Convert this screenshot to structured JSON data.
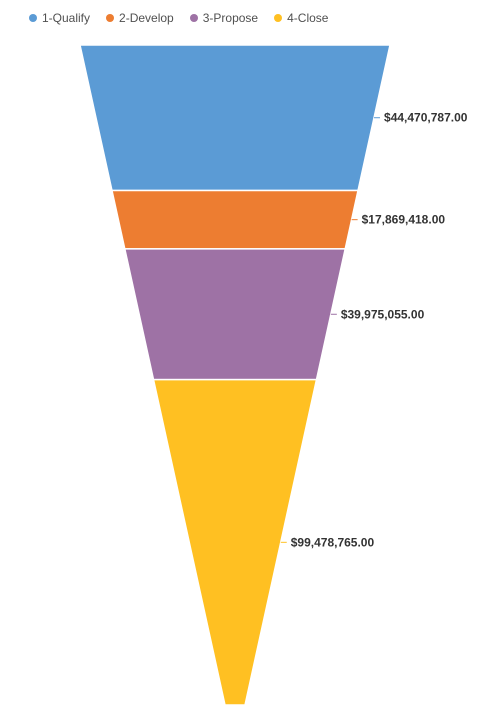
{
  "chart_data": {
    "type": "funnel",
    "categories": [
      "1-Qualify",
      "2-Develop",
      "3-Propose",
      "4-Close"
    ],
    "values": [
      44470787.0,
      17869418.0,
      39975055.0,
      99478765.0
    ],
    "value_labels": [
      "$44,470,787.00",
      "$17,869,418.00",
      "$39,975,055.00",
      "$99,478,765.00"
    ],
    "colors": [
      "#5b9bd5",
      "#ed7d31",
      "#9e72a5",
      "#ffc022"
    ],
    "legend_position": "top-left",
    "orientation": "inverted"
  }
}
